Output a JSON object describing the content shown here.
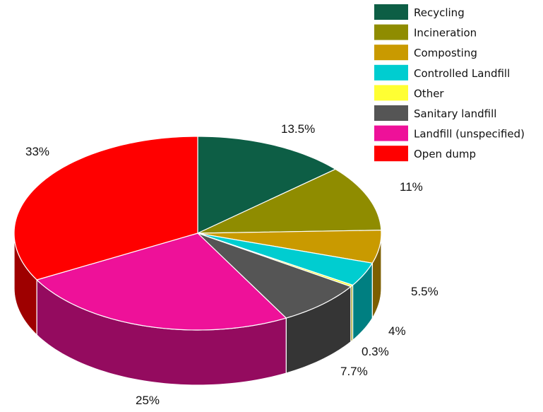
{
  "chart_data": {
    "type": "pie",
    "style": "3d",
    "title": "",
    "legend_position": "top-right",
    "series": [
      {
        "name": "Recycling",
        "value": 13.5,
        "label": "13.5%",
        "color": "#0d5e45"
      },
      {
        "name": "Incineration",
        "value": 11,
        "label": "11%",
        "color": "#8f8c00"
      },
      {
        "name": "Composting",
        "value": 5.5,
        "label": "5.5%",
        "color": "#c99a00"
      },
      {
        "name": "Controlled Landfill",
        "value": 4,
        "label": "4%",
        "color": "#00cdd0"
      },
      {
        "name": "Other",
        "value": 0.3,
        "label": "0.3%",
        "color": "#ffff33"
      },
      {
        "name": "Sanitary landfill",
        "value": 7.7,
        "label": "7.7%",
        "color": "#555555"
      },
      {
        "name": "Landfill (unspecified)",
        "value": 25,
        "label": "25%",
        "color": "#ee1199"
      },
      {
        "name": "Open dump",
        "value": 33,
        "label": "33%",
        "color": "#ff0000"
      }
    ]
  }
}
